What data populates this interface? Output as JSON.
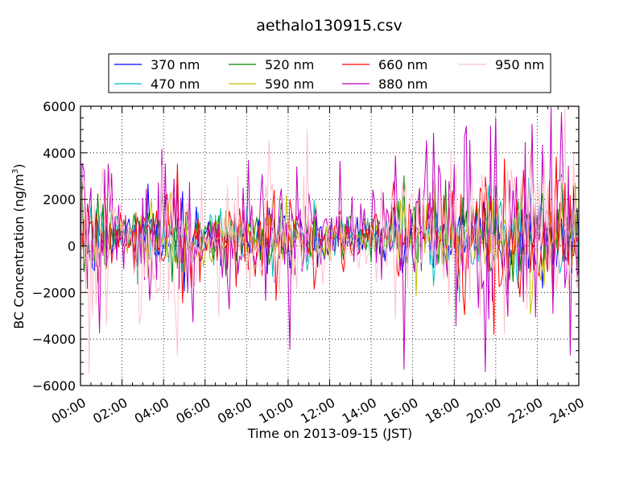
{
  "chart_data": {
    "type": "line",
    "title": "aethalo130915.csv",
    "xlabel": "Time on 2013-09-15 (JST)",
    "ylabel_main": "BC Concentration (ng/m",
    "ylabel_sup": "3",
    "ylabel_end": ")",
    "xlim": [
      0,
      24
    ],
    "ylim": [
      -6000,
      6000
    ],
    "x_ticks": [
      0,
      2,
      4,
      6,
      8,
      10,
      12,
      14,
      16,
      18,
      20,
      22,
      24
    ],
    "x_tick_labels": [
      "00:00",
      "02:00",
      "04:00",
      "06:00",
      "08:00",
      "10:00",
      "12:00",
      "14:00",
      "16:00",
      "18:00",
      "20:00",
      "22:00",
      "24:00"
    ],
    "y_ticks": [
      -6000,
      -4000,
      -2000,
      0,
      2000,
      4000,
      6000
    ],
    "y_tick_labels": [
      "−6000",
      "−4000",
      "−2000",
      "0",
      "2000",
      "4000",
      "6000"
    ],
    "grid": true,
    "legend_position": "top",
    "series": [
      {
        "name": "370 nm",
        "color": "#0000ff",
        "seed": 11,
        "amp": 650
      },
      {
        "name": "470 nm",
        "color": "#00bfbf",
        "seed": 23,
        "amp": 700
      },
      {
        "name": "520 nm",
        "color": "#008000",
        "seed": 37,
        "amp": 800
      },
      {
        "name": "590 nm",
        "color": "#bfbf00",
        "seed": 41,
        "amp": 800
      },
      {
        "name": "660 nm",
        "color": "#ff0000",
        "seed": 53,
        "amp": 1050
      },
      {
        "name": "880 nm",
        "color": "#bf00bf",
        "seed": 67,
        "amp": 1400
      },
      {
        "name": "950 nm",
        "color": "#ffc0cb",
        "seed": 79,
        "amp": 1500
      }
    ],
    "sampling_interval_minutes": 5,
    "peaks": [
      {
        "series": "880 nm",
        "x": 3.9,
        "y": 4150
      },
      {
        "series": "950 nm",
        "x": 10.9,
        "y": 5000
      },
      {
        "series": "880 nm",
        "x": 20.0,
        "y": 5500
      },
      {
        "series": "880 nm",
        "x": 10.1,
        "y": -4450
      },
      {
        "series": "880 nm",
        "x": 19.5,
        "y": -5400
      },
      {
        "series": "880 nm",
        "x": 15.6,
        "y": -5300
      },
      {
        "series": "950 nm",
        "x": 0.4,
        "y": -5500
      },
      {
        "series": "950 nm",
        "x": 4.7,
        "y": -4700
      },
      {
        "series": "880 nm",
        "x": 21.4,
        "y": 4450
      },
      {
        "series": "660 nm",
        "x": 19.9,
        "y": -3800
      }
    ]
  }
}
